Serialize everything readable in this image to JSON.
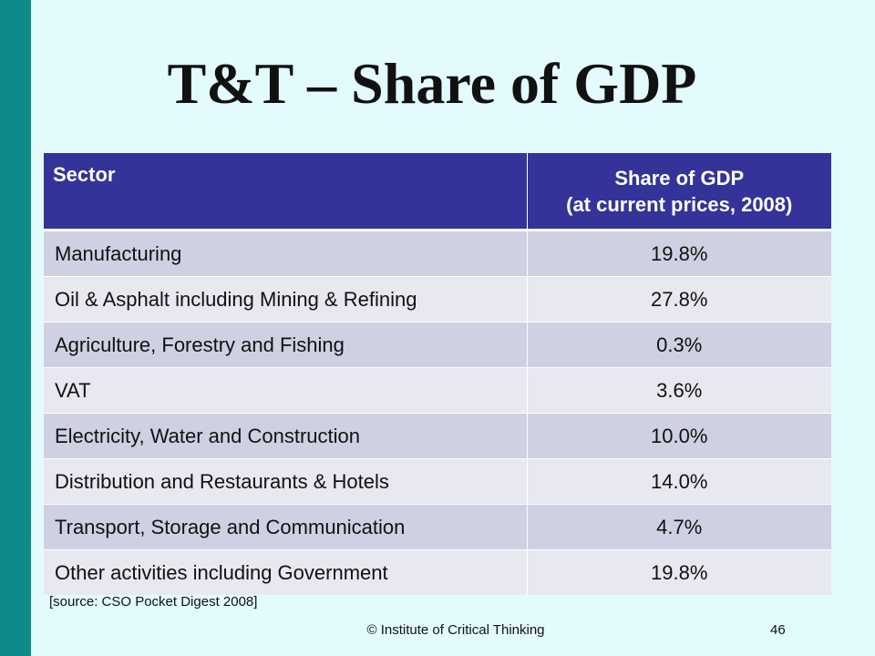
{
  "slide": {
    "title": "T&T – Share of GDP",
    "source": "[source: CSO Pocket Digest 2008]",
    "footer": "© Institute of Critical Thinking",
    "page_number": "46"
  },
  "colors": {
    "accent_bar": "#0f8a8b",
    "background": "#e3fbfd",
    "table_header": "#333399",
    "row_odd": "#cfd0e2",
    "row_even": "#e8e8f0"
  },
  "table": {
    "header_sector": "Sector",
    "header_share_line1": "Share of GDP",
    "header_share_line2": "(at current prices, 2008)",
    "rows": [
      {
        "sector": "Manufacturing",
        "share": "19.8%"
      },
      {
        "sector": "Oil & Asphalt including Mining & Refining",
        "share": "27.8%"
      },
      {
        "sector": "Agriculture, Forestry and Fishing",
        "share": "0.3%"
      },
      {
        "sector": "VAT",
        "share": "3.6%"
      },
      {
        "sector": "Electricity, Water and Construction",
        "share": "10.0%"
      },
      {
        "sector": "Distribution and Restaurants & Hotels",
        "share": "14.0%"
      },
      {
        "sector": "Transport, Storage and Communication",
        "share": "4.7%"
      },
      {
        "sector": "Other activities including Government",
        "share": "19.8%"
      }
    ]
  }
}
